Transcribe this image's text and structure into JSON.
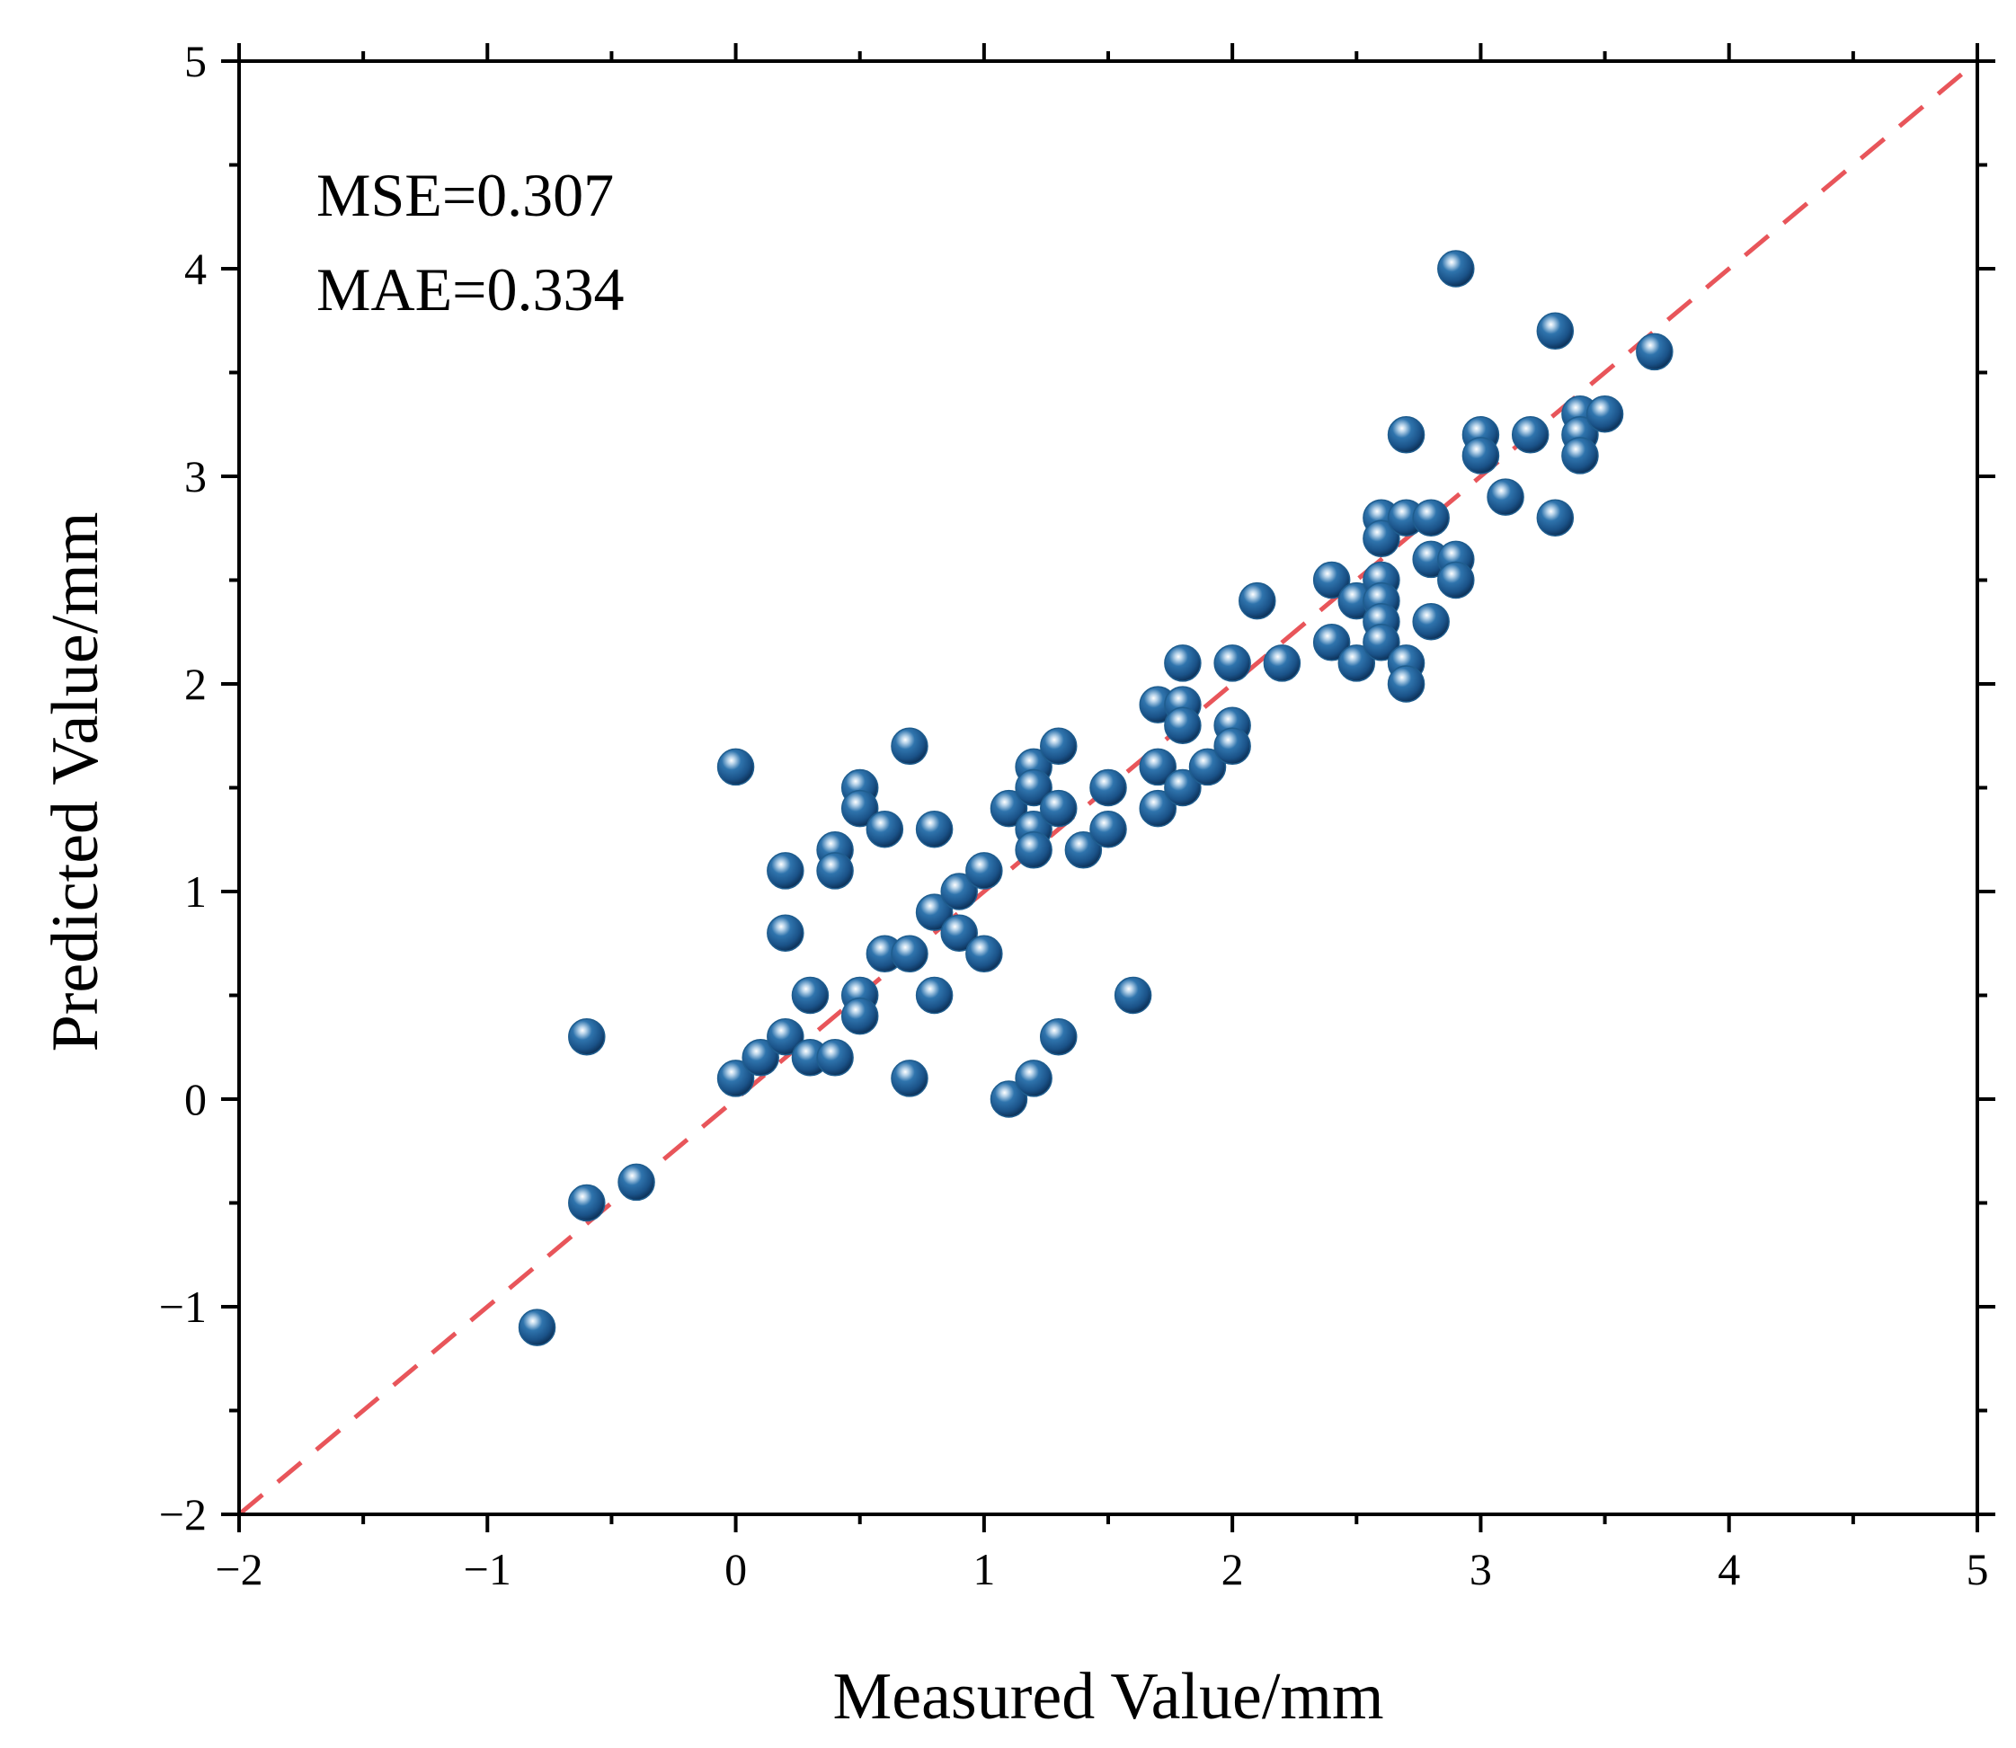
{
  "chart_data": {
    "type": "scatter",
    "xlabel": "Measured Value/mm",
    "ylabel": "Predicted Value/mm",
    "xlim": [
      -2,
      5
    ],
    "ylim": [
      -2,
      5
    ],
    "x_ticks": [
      -2,
      -1,
      0,
      1,
      2,
      3,
      4,
      5
    ],
    "y_ticks": [
      -2,
      -1,
      0,
      1,
      2,
      3,
      4,
      5
    ],
    "x_tick_labels": [
      "−2",
      "−1",
      "0",
      "1",
      "2",
      "3",
      "4",
      "5"
    ],
    "y_tick_labels": [
      "−2",
      "−1",
      "0",
      "1",
      "2",
      "3",
      "4",
      "5"
    ],
    "grid": false,
    "annotations": [
      "MSE=0.307",
      "MAE=0.334"
    ],
    "reference_line": {
      "style": "dashed",
      "from": [
        -2,
        -2
      ],
      "to": [
        5,
        5
      ],
      "color": "#e8555a"
    },
    "marker_color": "#1f5d8e",
    "series": [
      {
        "name": "samples",
        "points": [
          [
            -0.8,
            -1.1
          ],
          [
            -0.6,
            -0.5
          ],
          [
            -0.6,
            0.3
          ],
          [
            -0.4,
            -0.4
          ],
          [
            0.0,
            1.6
          ],
          [
            0.0,
            0.1
          ],
          [
            0.1,
            0.2
          ],
          [
            0.2,
            1.1
          ],
          [
            0.2,
            0.8
          ],
          [
            0.2,
            0.3
          ],
          [
            0.3,
            0.5
          ],
          [
            0.3,
            0.2
          ],
          [
            0.4,
            1.2
          ],
          [
            0.4,
            1.1
          ],
          [
            0.4,
            0.2
          ],
          [
            0.5,
            1.5
          ],
          [
            0.5,
            1.4
          ],
          [
            0.5,
            0.5
          ],
          [
            0.5,
            0.4
          ],
          [
            0.6,
            1.3
          ],
          [
            0.6,
            0.7
          ],
          [
            0.7,
            1.7
          ],
          [
            0.7,
            0.7
          ],
          [
            0.7,
            0.1
          ],
          [
            0.8,
            1.3
          ],
          [
            0.8,
            0.9
          ],
          [
            0.8,
            0.5
          ],
          [
            0.9,
            1.0
          ],
          [
            0.9,
            0.8
          ],
          [
            1.0,
            1.1
          ],
          [
            1.0,
            0.7
          ],
          [
            1.1,
            1.4
          ],
          [
            1.1,
            0.0
          ],
          [
            1.2,
            1.6
          ],
          [
            1.2,
            1.5
          ],
          [
            1.2,
            1.3
          ],
          [
            1.2,
            1.2
          ],
          [
            1.2,
            0.1
          ],
          [
            1.3,
            1.7
          ],
          [
            1.3,
            1.4
          ],
          [
            1.3,
            0.3
          ],
          [
            1.4,
            1.2
          ],
          [
            1.5,
            1.5
          ],
          [
            1.5,
            1.3
          ],
          [
            1.6,
            0.5
          ],
          [
            1.7,
            1.9
          ],
          [
            1.7,
            1.6
          ],
          [
            1.7,
            1.4
          ],
          [
            1.8,
            2.1
          ],
          [
            1.8,
            1.9
          ],
          [
            1.8,
            1.8
          ],
          [
            1.8,
            1.5
          ],
          [
            1.9,
            1.6
          ],
          [
            2.0,
            2.1
          ],
          [
            2.0,
            1.8
          ],
          [
            2.0,
            1.7
          ],
          [
            2.1,
            2.4
          ],
          [
            2.2,
            2.1
          ],
          [
            2.4,
            2.5
          ],
          [
            2.4,
            2.2
          ],
          [
            2.5,
            2.4
          ],
          [
            2.5,
            2.1
          ],
          [
            2.6,
            2.8
          ],
          [
            2.6,
            2.7
          ],
          [
            2.6,
            2.5
          ],
          [
            2.6,
            2.4
          ],
          [
            2.6,
            2.3
          ],
          [
            2.6,
            2.2
          ],
          [
            2.7,
            3.2
          ],
          [
            2.7,
            2.8
          ],
          [
            2.7,
            2.1
          ],
          [
            2.7,
            2.0
          ],
          [
            2.8,
            2.8
          ],
          [
            2.8,
            2.6
          ],
          [
            2.8,
            2.3
          ],
          [
            2.9,
            4.0
          ],
          [
            2.9,
            2.6
          ],
          [
            2.9,
            2.5
          ],
          [
            3.0,
            3.2
          ],
          [
            3.0,
            3.1
          ],
          [
            3.1,
            2.9
          ],
          [
            3.2,
            3.2
          ],
          [
            3.3,
            3.7
          ],
          [
            3.3,
            2.8
          ],
          [
            3.4,
            3.3
          ],
          [
            3.4,
            3.2
          ],
          [
            3.4,
            3.1
          ],
          [
            3.5,
            3.3
          ],
          [
            3.7,
            3.6
          ]
        ]
      }
    ]
  }
}
